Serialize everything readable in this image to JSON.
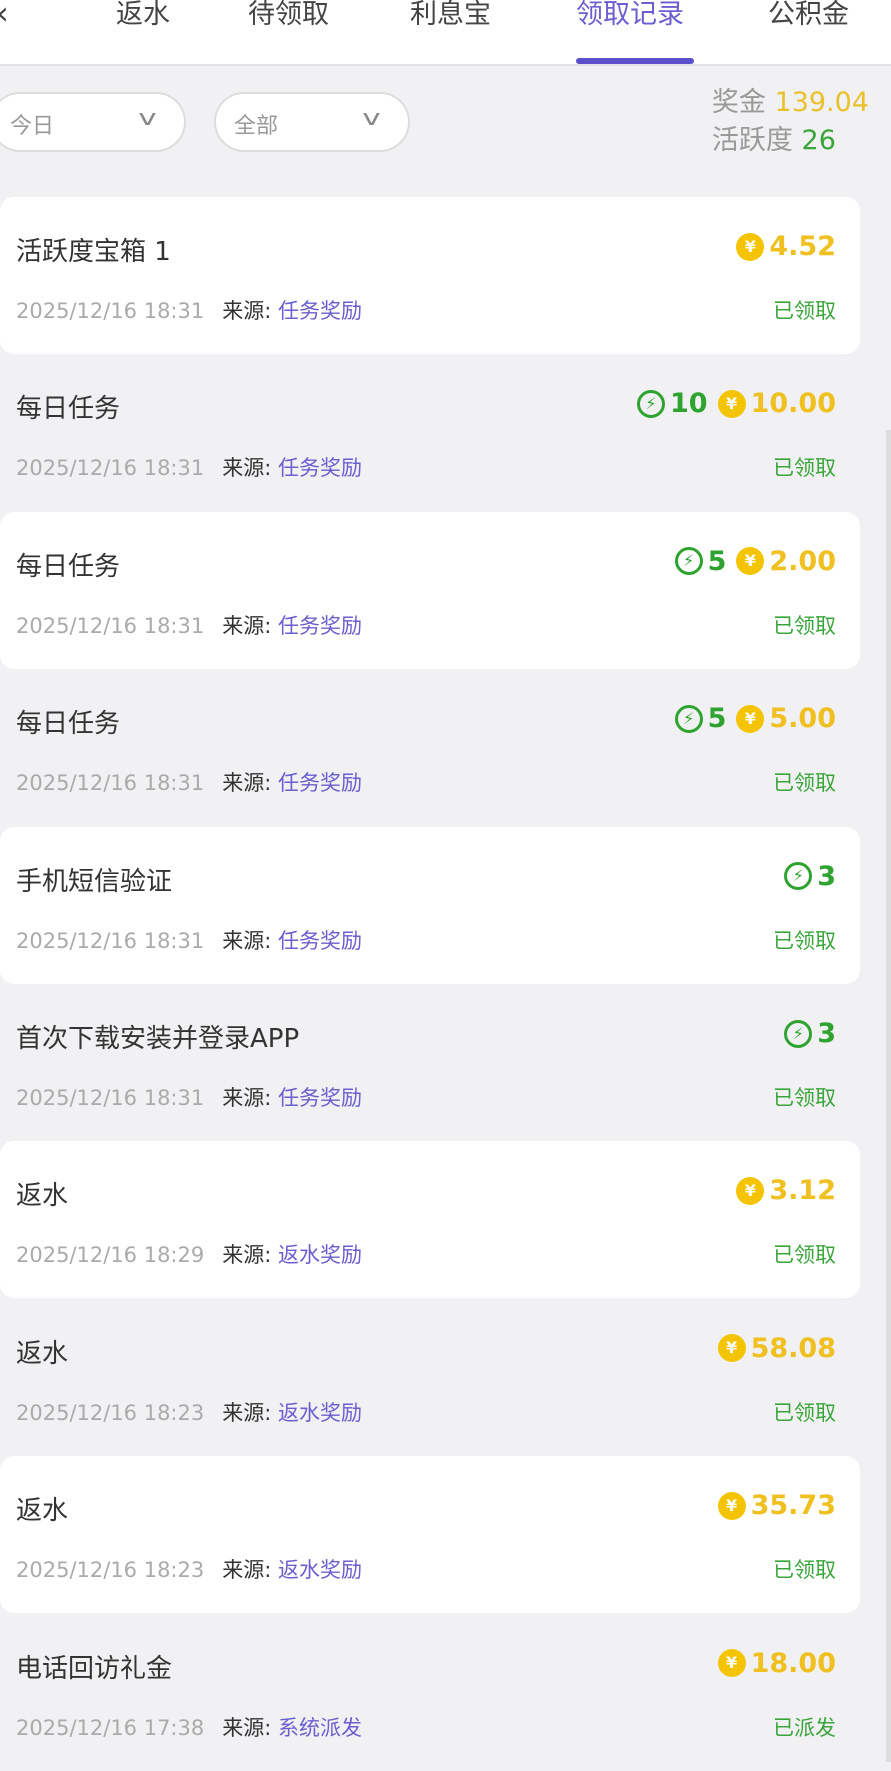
{
  "tabs": [
    "返水",
    "待领取",
    "利息宝",
    "领取记录",
    "公积金"
  ],
  "active_tab": 3,
  "filters": {
    "date": "今日",
    "type": "全部"
  },
  "stats": {
    "bonus_label": "奖金",
    "bonus_value": "139.04",
    "activity_label": "活跃度",
    "activity_value": "26"
  },
  "source_label": "来源:",
  "colors": {
    "accent": "#5b50cc",
    "gold": "#f0c020",
    "green": "#2fa32f"
  },
  "records": [
    {
      "title": "活跃度宝箱 1",
      "energy": null,
      "coin": "4.52",
      "date": "2025/12/16 18:31",
      "source": "任务奖励",
      "status": "已领取"
    },
    {
      "title": "每日任务",
      "energy": "10",
      "coin": "10.00",
      "date": "2025/12/16 18:31",
      "source": "任务奖励",
      "status": "已领取"
    },
    {
      "title": "每日任务",
      "energy": "5",
      "coin": "2.00",
      "date": "2025/12/16 18:31",
      "source": "任务奖励",
      "status": "已领取"
    },
    {
      "title": "每日任务",
      "energy": "5",
      "coin": "5.00",
      "date": "2025/12/16 18:31",
      "source": "任务奖励",
      "status": "已领取"
    },
    {
      "title": "手机短信验证",
      "energy": "3",
      "coin": null,
      "date": "2025/12/16 18:31",
      "source": "任务奖励",
      "status": "已领取"
    },
    {
      "title": "首次下载安装并登录APP",
      "energy": "3",
      "coin": null,
      "date": "2025/12/16 18:31",
      "source": "任务奖励",
      "status": "已领取"
    },
    {
      "title": "返水",
      "energy": null,
      "coin": "3.12",
      "date": "2025/12/16 18:29",
      "source": "返水奖励",
      "status": "已领取"
    },
    {
      "title": "返水",
      "energy": null,
      "coin": "58.08",
      "date": "2025/12/16 18:23",
      "source": "返水奖励",
      "status": "已领取"
    },
    {
      "title": "返水",
      "energy": null,
      "coin": "35.73",
      "date": "2025/12/16 18:23",
      "source": "返水奖励",
      "status": "已领取"
    },
    {
      "title": "电话回访礼金",
      "energy": null,
      "coin": "18.00",
      "date": "2025/12/16 17:38",
      "source": "系统派发",
      "status": "已派发"
    }
  ]
}
